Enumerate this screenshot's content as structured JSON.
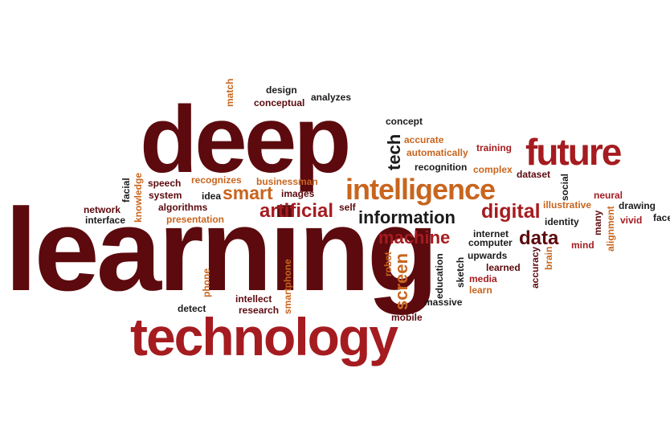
{
  "palette": {
    "dark_maroon": "#5c0a0e",
    "red": "#a51c20",
    "orange": "#c8651e",
    "black": "#1b1b1b",
    "background": "#ffffff"
  },
  "words": {
    "learning": "learning",
    "deep": "deep",
    "technology": "technology",
    "future": "future",
    "intelligence": "intelligence",
    "information": "information",
    "artificial": "artificial",
    "smart": "smart",
    "digital": "digital",
    "machine": "machine",
    "data": "data",
    "screen": "screen",
    "tech": "tech",
    "match": "match",
    "design": "design",
    "conceptual": "conceptual",
    "analyzes": "analyzes",
    "concept": "concept",
    "accurate": "accurate",
    "automatically": "automatically",
    "training": "training",
    "recognition": "recognition",
    "complex": "complex",
    "dataset": "dataset",
    "social": "social",
    "illustrative": "illustrative",
    "neural": "neural",
    "drawing": "drawing",
    "identity": "identity",
    "vivid": "vivid",
    "face": "face",
    "many": "many",
    "alignment": "alignment",
    "mind": "mind",
    "brain": "brain",
    "accuracy": "accuracy",
    "facial": "facial",
    "knowledge": "knowledge",
    "network": "network",
    "interface": "interface",
    "speech": "speech",
    "system": "system",
    "algorithms": "algorithms",
    "presentation": "presentation",
    "recognizes": "recognizes",
    "businessman": "businessman",
    "idea": "idea",
    "images": "images",
    "self": "self",
    "phone": "phone",
    "smartphone": "smartphone",
    "intellect": "intellect",
    "research": "research",
    "detect": "detect",
    "robot": "robot",
    "mobile": "mobile",
    "education": "education",
    "sketch": "sketch",
    "massive": "massive",
    "internet": "internet",
    "computer": "computer",
    "upwards": "upwards",
    "learned": "learned",
    "media": "media",
    "learn": "learn"
  },
  "layout": [
    {
      "key": "learning",
      "color": "dark"
    },
    {
      "key": "deep",
      "color": "dark"
    },
    {
      "key": "technology",
      "color": "red"
    },
    {
      "key": "future",
      "color": "red"
    },
    {
      "key": "intelligence",
      "color": "orange"
    },
    {
      "key": "information",
      "color": "black"
    },
    {
      "key": "artificial",
      "color": "red"
    },
    {
      "key": "smart",
      "color": "orange"
    },
    {
      "key": "digital",
      "color": "red"
    },
    {
      "key": "machine",
      "color": "red"
    },
    {
      "key": "data",
      "color": "dark"
    },
    {
      "key": "screen",
      "color": "orange"
    },
    {
      "key": "tech",
      "color": "black"
    },
    {
      "key": "match",
      "color": "orange"
    },
    {
      "key": "design",
      "color": "black"
    },
    {
      "key": "conceptual",
      "color": "dark"
    },
    {
      "key": "analyzes",
      "color": "black"
    },
    {
      "key": "concept",
      "color": "black"
    },
    {
      "key": "accurate",
      "color": "orange"
    },
    {
      "key": "automatically",
      "color": "orange"
    },
    {
      "key": "training",
      "color": "red"
    },
    {
      "key": "recognition",
      "color": "black"
    },
    {
      "key": "complex",
      "color": "orange"
    },
    {
      "key": "dataset",
      "color": "dark"
    },
    {
      "key": "social",
      "color": "black"
    },
    {
      "key": "illustrative",
      "color": "orange"
    },
    {
      "key": "neural",
      "color": "red"
    },
    {
      "key": "drawing",
      "color": "black"
    },
    {
      "key": "identity",
      "color": "black"
    },
    {
      "key": "vivid",
      "color": "red"
    },
    {
      "key": "face",
      "color": "black"
    },
    {
      "key": "many",
      "color": "dark"
    },
    {
      "key": "alignment",
      "color": "orange"
    },
    {
      "key": "mind",
      "color": "red"
    },
    {
      "key": "brain",
      "color": "orange"
    },
    {
      "key": "accuracy",
      "color": "dark"
    },
    {
      "key": "facial",
      "color": "black"
    },
    {
      "key": "knowledge",
      "color": "orange"
    },
    {
      "key": "network",
      "color": "dark"
    },
    {
      "key": "interface",
      "color": "black"
    },
    {
      "key": "speech",
      "color": "dark"
    },
    {
      "key": "system",
      "color": "dark"
    },
    {
      "key": "algorithms",
      "color": "dark"
    },
    {
      "key": "presentation",
      "color": "orange"
    },
    {
      "key": "recognizes",
      "color": "orange"
    },
    {
      "key": "businessman",
      "color": "orange"
    },
    {
      "key": "idea",
      "color": "black"
    },
    {
      "key": "images",
      "color": "dark"
    },
    {
      "key": "self",
      "color": "dark"
    },
    {
      "key": "phone",
      "color": "orange"
    },
    {
      "key": "smartphone",
      "color": "orange"
    },
    {
      "key": "intellect",
      "color": "dark"
    },
    {
      "key": "research",
      "color": "dark"
    },
    {
      "key": "detect",
      "color": "black"
    },
    {
      "key": "robot",
      "color": "orange"
    },
    {
      "key": "mobile",
      "color": "dark"
    },
    {
      "key": "education",
      "color": "black"
    },
    {
      "key": "sketch",
      "color": "black"
    },
    {
      "key": "massive",
      "color": "black"
    },
    {
      "key": "internet",
      "color": "black"
    },
    {
      "key": "computer",
      "color": "black"
    },
    {
      "key": "upwards",
      "color": "black"
    },
    {
      "key": "learned",
      "color": "dark"
    },
    {
      "key": "media",
      "color": "red"
    },
    {
      "key": "learn",
      "color": "orange"
    }
  ]
}
